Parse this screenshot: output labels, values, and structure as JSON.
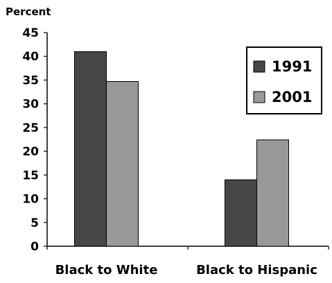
{
  "chart_data": {
    "type": "bar",
    "ylabel": "Percent",
    "ylim": [
      0,
      45
    ],
    "yticks": [
      0,
      5,
      10,
      15,
      20,
      25,
      30,
      35,
      40,
      45
    ],
    "categories": [
      "Black to White",
      "Black to Hispanic"
    ],
    "series": [
      {
        "name": "1991",
        "values": [
          41,
          14
        ],
        "color": "#474747"
      },
      {
        "name": "2001",
        "values": [
          34.7,
          22.4
        ],
        "color": "#999999"
      }
    ],
    "legend_position": "top-right",
    "grid": false
  }
}
